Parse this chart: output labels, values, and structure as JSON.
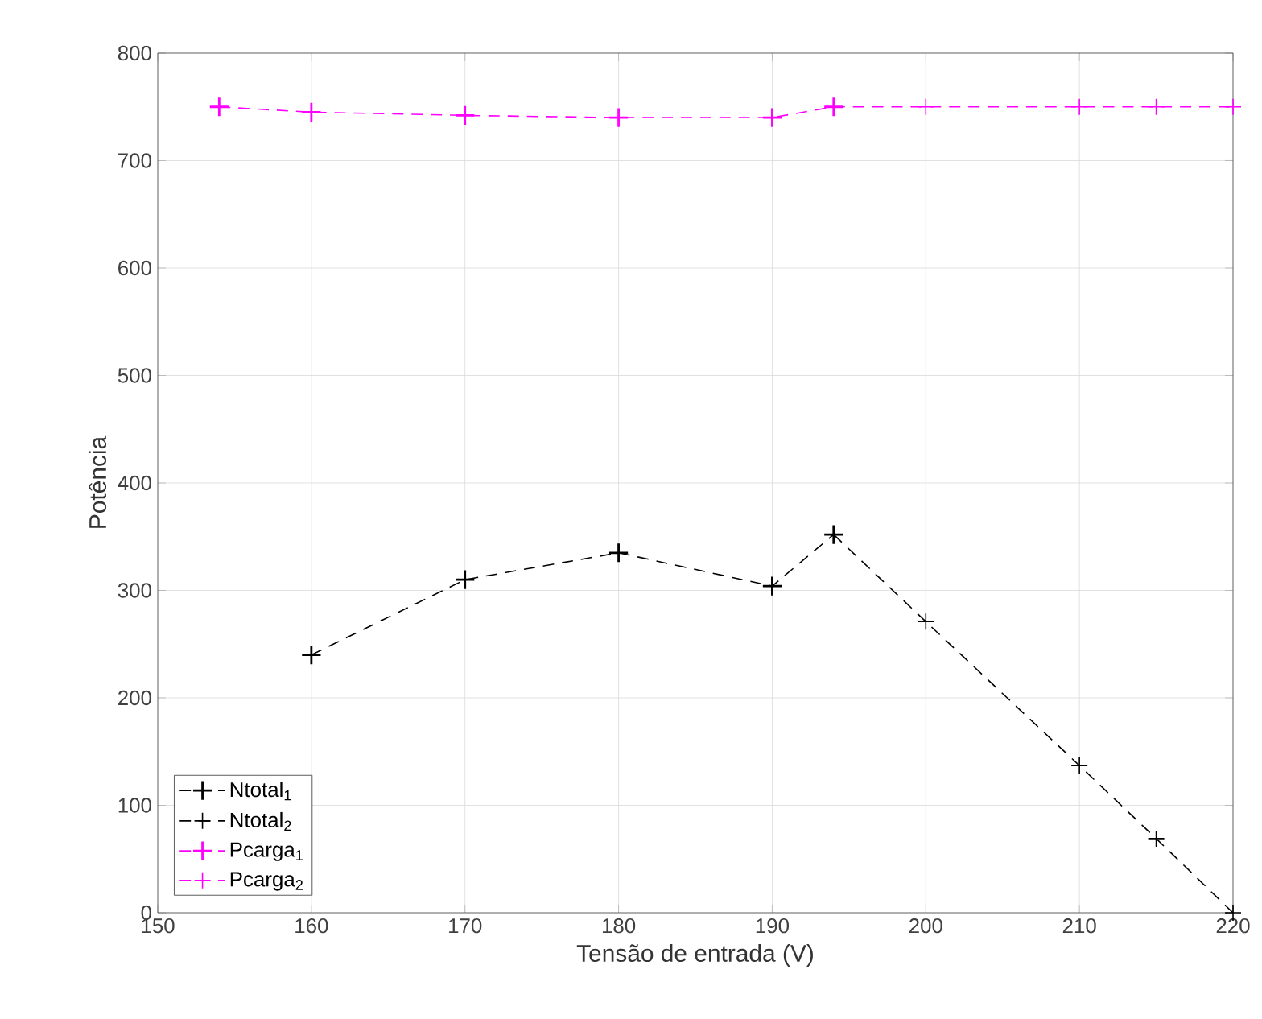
{
  "chart_data": {
    "type": "line",
    "xlabel": "Tensão de entrada (V)",
    "ylabel": "Potência",
    "xlim": [
      150,
      220
    ],
    "xticks": [
      150,
      160,
      170,
      180,
      190,
      200,
      210,
      220
    ],
    "ylim": [
      0,
      800
    ],
    "yticks": [
      0,
      100,
      200,
      300,
      400,
      500,
      600,
      700,
      800
    ],
    "grid": true,
    "legend": "bottom left",
    "marker": "cross",
    "line_style": "dashed",
    "series": [
      {
        "name": "Ntotal$_{1}$",
        "color": "#000000",
        "x": [
          160,
          170,
          180,
          190,
          194
        ],
        "values": [
          240,
          310,
          335,
          304,
          352
        ]
      },
      {
        "name": "Ntotal$_{2}$",
        "color": "#000000",
        "x": [
          194,
          200,
          210,
          215,
          220
        ],
        "values": [
          352,
          271,
          137,
          69,
          0
        ]
      },
      {
        "name": "Pcarga$_{1}$",
        "color": "#ff00ff",
        "x": [
          154,
          160,
          170,
          180,
          190,
          194
        ],
        "values": [
          750,
          745,
          742,
          740,
          740,
          750
        ]
      },
      {
        "name": "Pcarga$_{2}$",
        "color": "#ff00ff",
        "x": [
          194,
          200,
          210,
          215,
          220
        ],
        "values": [
          750,
          750,
          750,
          750,
          750
        ]
      }
    ]
  }
}
